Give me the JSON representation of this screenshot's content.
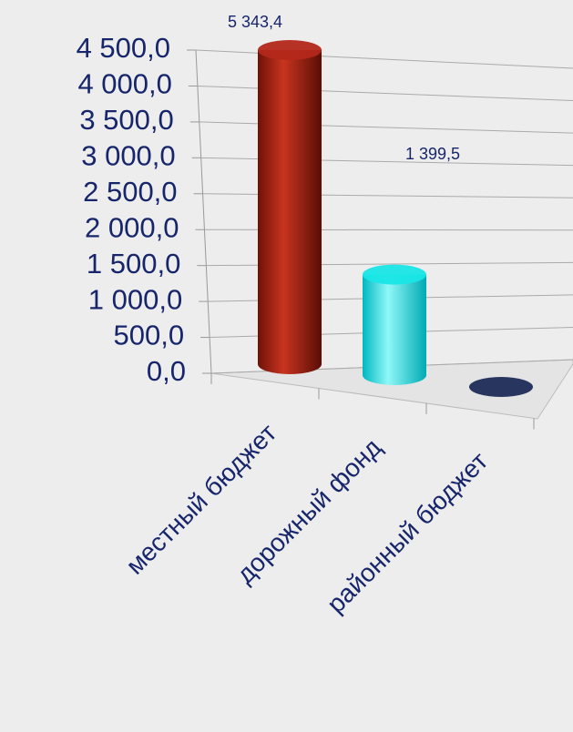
{
  "chart_data": {
    "type": "bar3d",
    "categories": [
      "местный бюджет",
      "дорожный фонд",
      "районный бюджет"
    ],
    "values": [
      5343.4,
      1399.5,
      0
    ],
    "value_labels": [
      "5 343,4",
      "1 399,5",
      null
    ],
    "colors": [
      "#b3281a",
      "#19e6e6",
      "#1e2b56"
    ],
    "ylim": [
      0,
      4500
    ],
    "yticks": [
      {
        "value": 0,
        "label": "0,0"
      },
      {
        "value": 500,
        "label": "500,0"
      },
      {
        "value": 1000,
        "label": "1 000,0"
      },
      {
        "value": 1500,
        "label": "1 500,0"
      },
      {
        "value": 2000,
        "label": "2 000,0"
      },
      {
        "value": 2500,
        "label": "2 500,0"
      },
      {
        "value": 3000,
        "label": "3 000,0"
      },
      {
        "value": 3500,
        "label": "3 500,0"
      },
      {
        "value": 4000,
        "label": "4 000,0"
      },
      {
        "value": 4500,
        "label": "4 500,0"
      }
    ],
    "grid": true
  }
}
